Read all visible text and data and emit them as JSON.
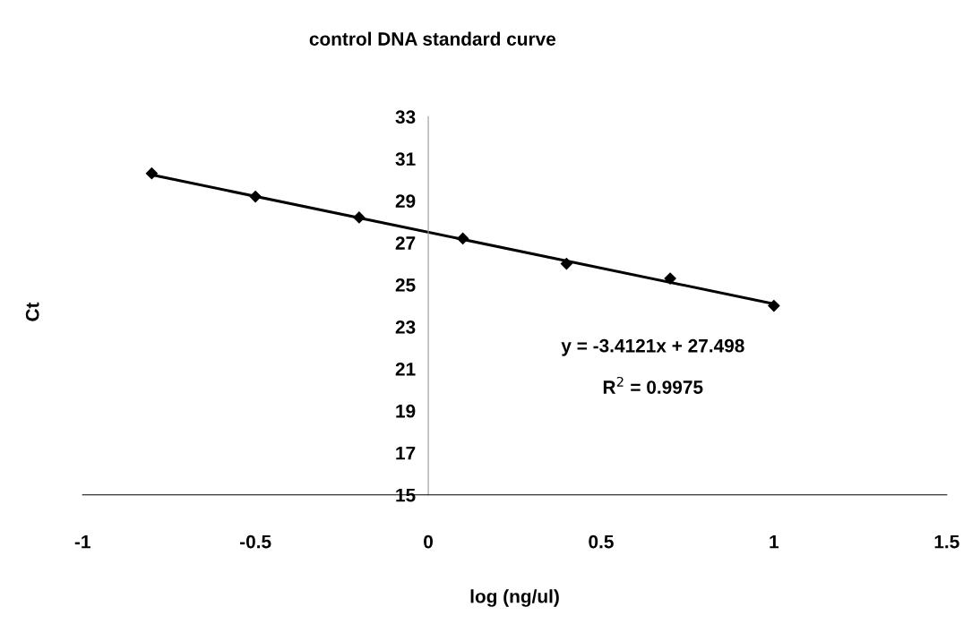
{
  "chart_data": {
    "type": "scatter",
    "title": "control DNA standard curve",
    "xlabel": "log (ng/ul)",
    "ylabel": "Ct",
    "grid": false,
    "legend": false,
    "xlim": [
      -1,
      1.5
    ],
    "xticks": [
      -1,
      -0.5,
      0,
      0.5,
      1,
      1.5
    ],
    "ylim": [
      15,
      33
    ],
    "yticks": [
      15,
      17,
      19,
      21,
      23,
      25,
      27,
      29,
      31,
      33
    ],
    "series": [
      {
        "marker": "diamond",
        "color": "#000000",
        "x": [
          -0.8,
          -0.5,
          -0.2,
          0.1,
          0.4,
          0.7,
          1.0
        ],
        "values": [
          30.3,
          29.2,
          28.2,
          27.2,
          26.0,
          25.3,
          24.0
        ]
      },
      {
        "type": "line",
        "color": "#000000",
        "x": [
          -0.8,
          1.0
        ],
        "values": [
          30.23,
          24.09
        ]
      }
    ],
    "annotations": [
      {
        "text": "y = -3.4121x + 27.498"
      },
      {
        "text": "R$^{2}$ = 0.9975"
      }
    ]
  }
}
